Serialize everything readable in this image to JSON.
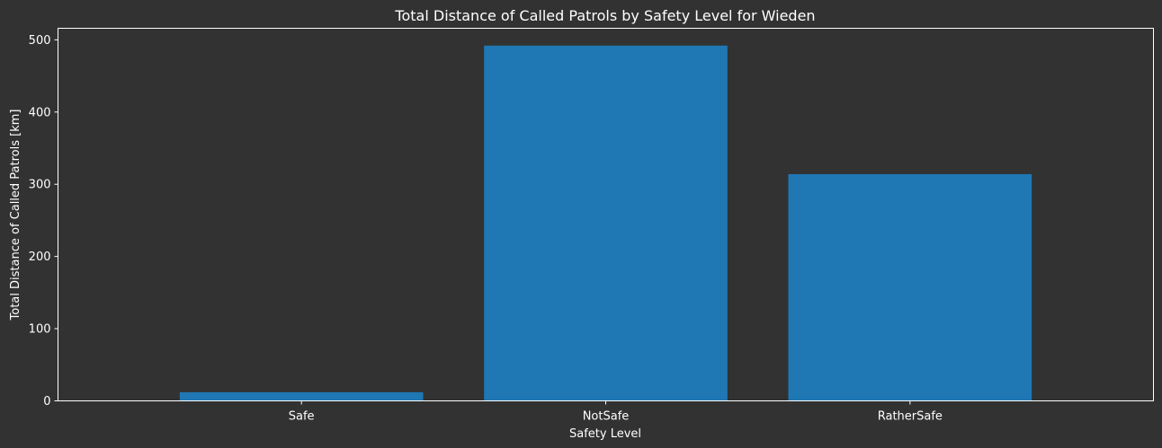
{
  "chart_data": {
    "type": "bar",
    "title": "Total Distance of Called Patrols by Safety Level for Wieden",
    "xlabel": "Safety Level",
    "ylabel": "Total Distance of Called Patrols [km]",
    "categories": [
      "Safe",
      "NotSafe",
      "RatherSafe"
    ],
    "values": [
      12,
      492,
      314
    ],
    "ylim": [
      0,
      516
    ],
    "yticks": [
      0,
      100,
      200,
      300,
      400,
      500
    ],
    "grid": false,
    "legend": "none",
    "colors": {
      "background": "#323232",
      "bar": "#1f77b4",
      "axis": "#ffffff",
      "text": "#ffffff"
    }
  }
}
